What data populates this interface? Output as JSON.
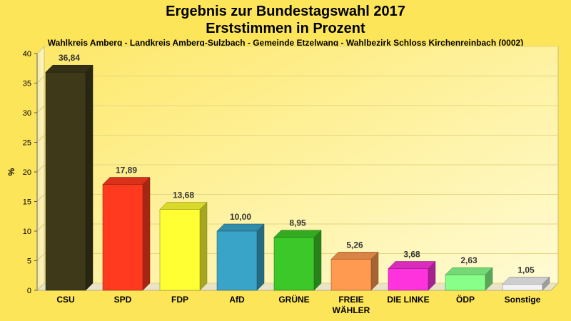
{
  "chart_data": {
    "type": "bar",
    "title_line1": "Ergebnis zur Bundestagswahl 2017",
    "title_line2": "Erststimmen in Prozent",
    "subtitle": "Wahlkreis Amberg - Landkreis Amberg-Sulzbach - Gemeinde Etzelwang - Wahlbezirk Schloss Kirchenreinbach (0002)",
    "ylabel": "%",
    "ylim": [
      0,
      40
    ],
    "yticks": [
      "0",
      "5",
      "10",
      "15",
      "20",
      "25",
      "30",
      "35",
      "40"
    ],
    "grid": true,
    "categories": [
      {
        "label": "CSU",
        "label2": ""
      },
      {
        "label": "SPD",
        "label2": ""
      },
      {
        "label": "FDP",
        "label2": ""
      },
      {
        "label": "AfD",
        "label2": ""
      },
      {
        "label": "GRÜNE",
        "label2": ""
      },
      {
        "label": "FREIE",
        "label2": "WÄHLER"
      },
      {
        "label": "DIE LINKE",
        "label2": ""
      },
      {
        "label": "ÖDP",
        "label2": ""
      },
      {
        "label": "Sonstige",
        "label2": ""
      }
    ],
    "values": [
      36.84,
      17.89,
      13.68,
      10.0,
      8.95,
      5.26,
      3.68,
      2.63,
      1.05
    ],
    "value_labels": [
      "36,84",
      "17,89",
      "13,68",
      "10,00",
      "8,95",
      "5,26",
      "3,68",
      "2,63",
      "1,05"
    ],
    "colors": [
      "#3d3919",
      "#ff3a1e",
      "#ffff33",
      "#3aa3c8",
      "#3cc828",
      "#ff9a50",
      "#ff33dd",
      "#88ff88",
      "#f2f2f2"
    ],
    "background": "#fde55a"
  }
}
